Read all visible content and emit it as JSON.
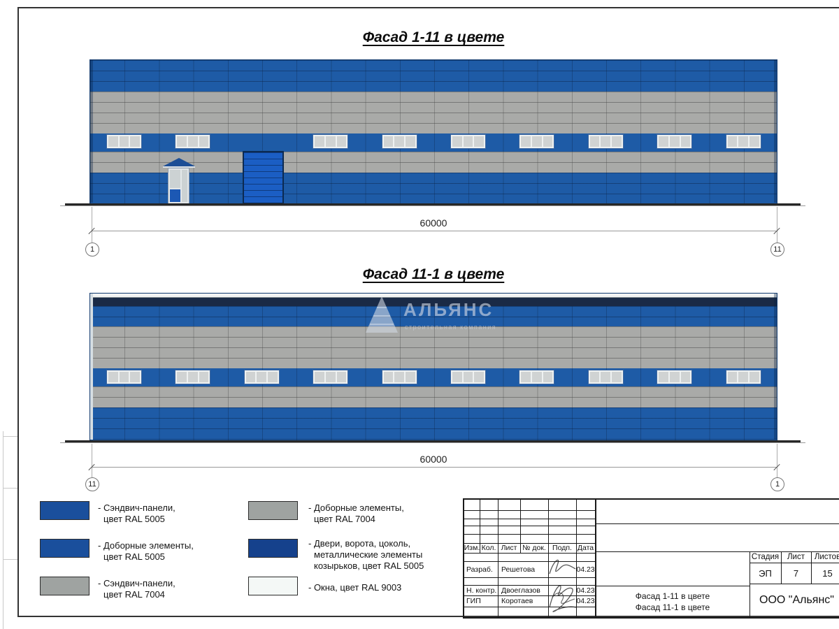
{
  "facade1": {
    "title": "Фасад 1-11 в цвете",
    "dim": "60000",
    "axis_left": "1",
    "axis_right": "11"
  },
  "facade2": {
    "title": "Фасад 11-1 в цвете",
    "dim": "60000",
    "axis_left": "11",
    "axis_right": "1"
  },
  "watermark": {
    "name": "АЛЬЯНС",
    "subtitle": "строительная компания"
  },
  "legend": [
    {
      "line1": "- Сэндвич-панели,",
      "line2": "цвет RAL 5005"
    },
    {
      "line1": "- Доборные элементы,",
      "line2": "цвет RAL 5005"
    },
    {
      "line1": "- Сэндвич-панели,",
      "line2": "цвет RAL 7004"
    },
    {
      "line1": "- Доборные элементы,",
      "line2": "цвет RAL 7004"
    },
    {
      "line1": "- Двери, ворота, цоколь,",
      "line2": "металлические элементы",
      "line3": "козырьков, цвет RAL 5005"
    },
    {
      "line1": "- Окна, цвет RAL 9003"
    }
  ],
  "titleblock": {
    "col_izm": "Изм.",
    "col_kol": "Кол.",
    "col_list": "Лист",
    "col_doc": "№ док.",
    "col_podp": "Подп.",
    "col_data": "Дата",
    "people": [
      {
        "role": "Разраб.",
        "name": "Решетова",
        "date": "04.23"
      },
      {
        "role": "Н. контр.",
        "name": "Двоеглазов",
        "date": "04.23"
      },
      {
        "role": "ГИП",
        "name": "Коротаев",
        "date": "04.23"
      }
    ],
    "stage_label": "Стадия",
    "sheet_label": "Лист",
    "sheets_label": "Листов",
    "stage": "ЭП",
    "sheet": "7",
    "sheets": "15",
    "doc1": "Фасад 1-11 в цвете",
    "doc2": "Фасад 11-1 в цвете",
    "company": "ООО \"Альянс\""
  }
}
